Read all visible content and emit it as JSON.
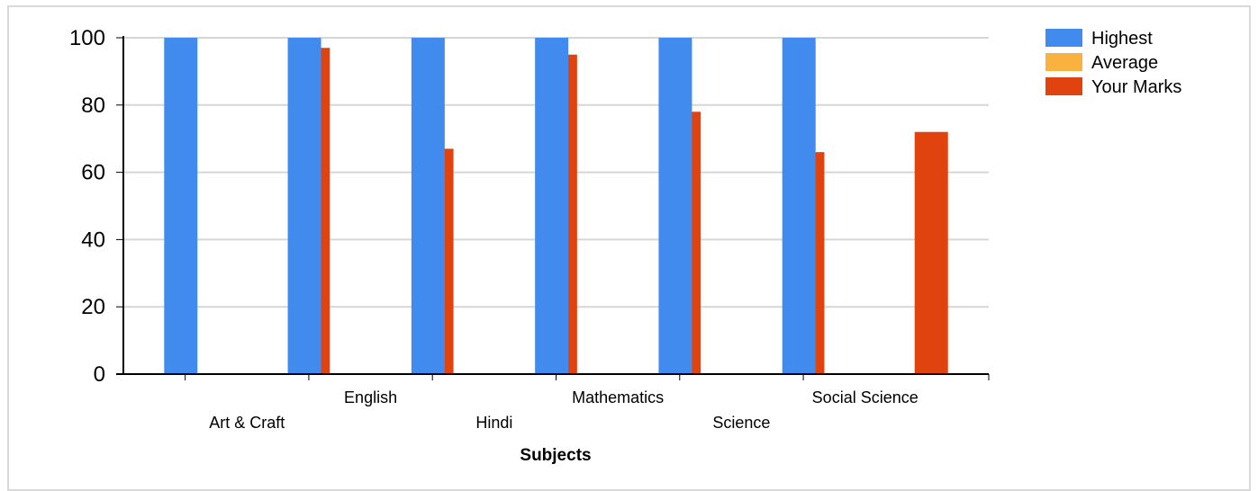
{
  "chart_data": {
    "type": "bar",
    "categories": [
      "Art & Craft",
      "English",
      "Hindi",
      "Mathematics",
      "Science",
      "Social Science"
    ],
    "series": [
      {
        "name": "Highest",
        "color": "#428bee",
        "values": [
          100,
          100,
          100,
          100,
          100,
          100
        ]
      },
      {
        "name": "Average",
        "color": "#f9b13f",
        "values": [
          0,
          0,
          0,
          0,
          0,
          0
        ]
      },
      {
        "name": "Your Marks",
        "color": "#e0430e",
        "values": [
          97,
          67,
          95,
          78,
          66,
          72
        ]
      }
    ],
    "xlabel": "Subjects",
    "ylabel": "",
    "ylim": [
      0,
      100
    ],
    "yticks": [
      0,
      20,
      40,
      60,
      80,
      100
    ],
    "grid": true,
    "legend_position": "top-right"
  }
}
